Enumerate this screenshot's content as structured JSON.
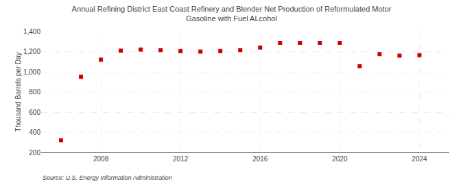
{
  "chart_data": {
    "type": "scatter",
    "title": "Annual Refining District East Coast Refinery and Blender Net Production of Reformulated Motor\nGasoline with Fuel ALcohol",
    "ylabel": "Thousand Barrels per Day",
    "source": "Source: U.S. Energy Information Administration",
    "x": [
      2006,
      2007,
      2008,
      2009,
      2010,
      2011,
      2012,
      2013,
      2014,
      2015,
      2016,
      2017,
      2018,
      2019,
      2020,
      2021,
      2022,
      2023,
      2024
    ],
    "values": [
      320,
      950,
      1120,
      1210,
      1220,
      1215,
      1205,
      1200,
      1205,
      1215,
      1240,
      1285,
      1285,
      1285,
      1285,
      1055,
      1175,
      1160,
      1165
    ],
    "color": "#cc0000",
    "marker": "square",
    "xlim": [
      2005.0,
      2025.5
    ],
    "xticks": [
      2008,
      2012,
      2016,
      2020,
      2024
    ],
    "ylim": [
      200,
      1400
    ],
    "yticks": [
      200,
      400,
      600,
      800,
      {
        "value": 1000,
        "label": "1,000"
      },
      {
        "value": 1200,
        "label": "1,200"
      },
      {
        "value": 1400,
        "label": "1,400"
      }
    ],
    "grid": true
  }
}
